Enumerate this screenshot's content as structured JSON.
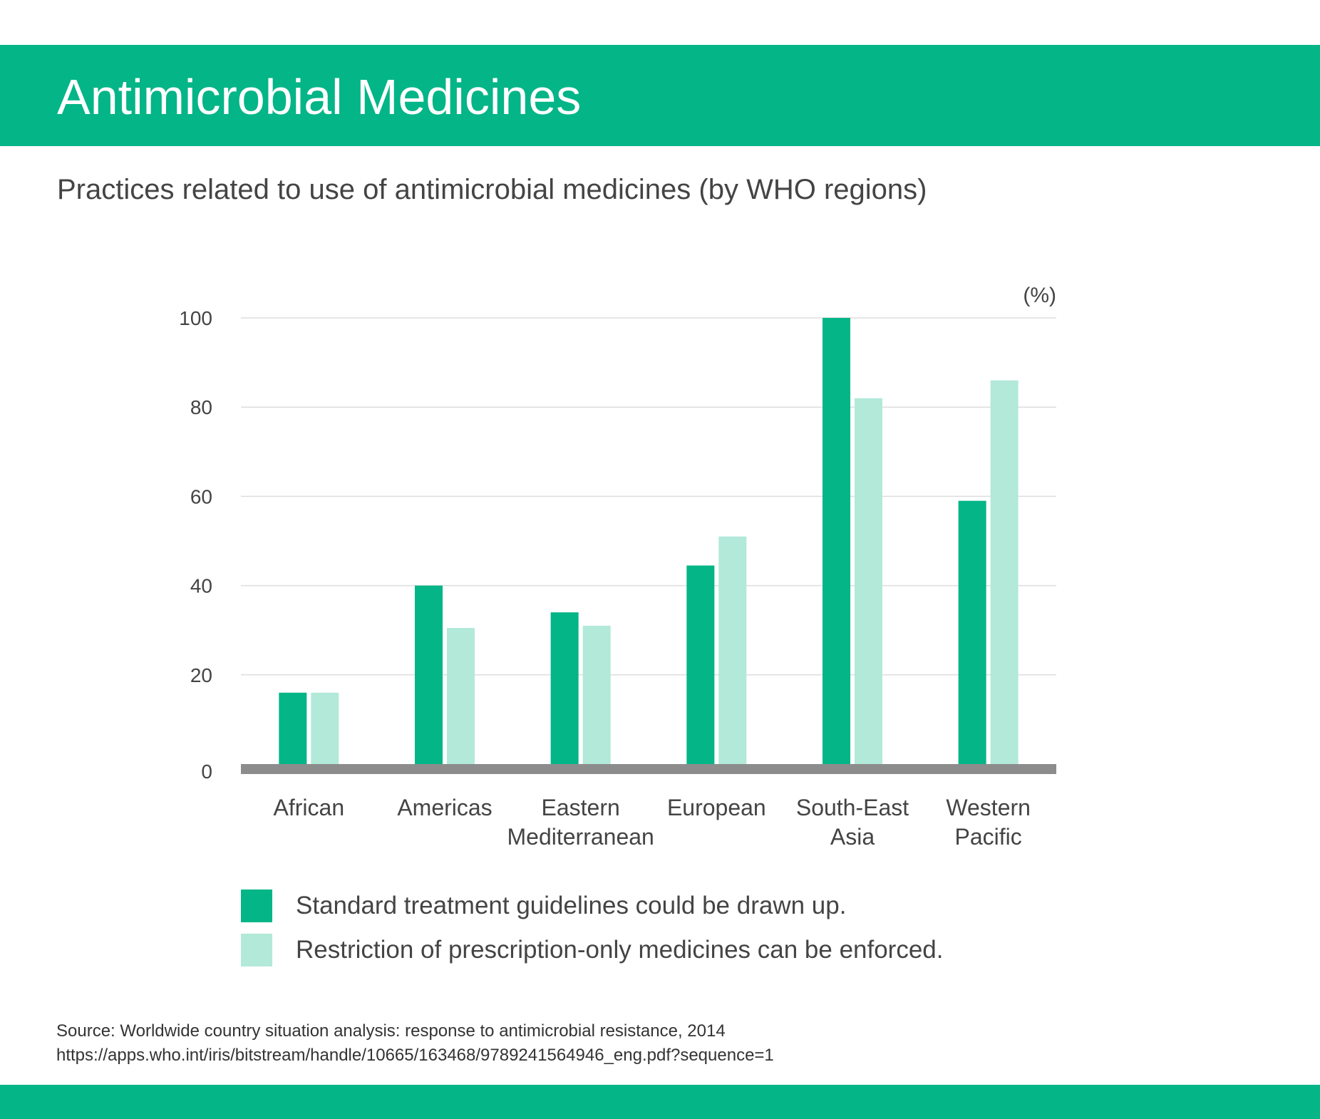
{
  "header": {
    "title": "Antimicrobial Medicines"
  },
  "subtitle": "Practices related to use of antimicrobial medicines (by WHO regions)",
  "colors": {
    "brand": "#03b587",
    "series_dark": "#03b587",
    "series_light": "#b2e9d9",
    "baseline": "#8c8c8c",
    "grid": "#dddddd"
  },
  "chart_data": {
    "type": "bar",
    "unit_label": "(%)",
    "ylim": [
      0,
      100
    ],
    "yticks": [
      "0",
      "20",
      "40",
      "60",
      "80",
      "100"
    ],
    "grid": true,
    "legend_position": "bottom",
    "categories": [
      [
        "African"
      ],
      [
        "Americas"
      ],
      [
        "Eastern",
        "Mediterranean"
      ],
      [
        "European"
      ],
      [
        "South-East",
        "Asia"
      ],
      [
        "Western",
        "Pacific"
      ]
    ],
    "series": [
      {
        "name": "Standard treatment guidelines could be drawn up.",
        "color": "#03b587",
        "values": [
          16,
          40,
          34,
          44.5,
          100,
          59
        ]
      },
      {
        "name": "Restriction of prescription-only medicines can be enforced.",
        "color": "#b2e9d9",
        "values": [
          16,
          30.5,
          31,
          51,
          82,
          86
        ]
      }
    ]
  },
  "source": {
    "line1": "Source: Worldwide country situation analysis: response to antimicrobial resistance, 2014",
    "line2": "https://apps.who.int/iris/bitstream/handle/10665/163468/9789241564946_eng.pdf?sequence=1"
  }
}
